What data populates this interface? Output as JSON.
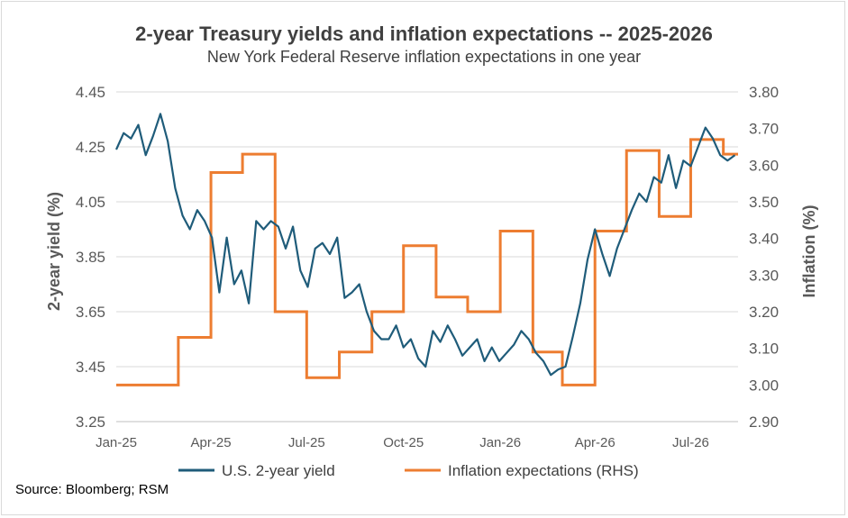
{
  "chart_data": {
    "type": "line",
    "title": "2-year Treasury yields and inflation expectations -- 2025-2026",
    "subtitle": "New York Federal Reserve inflation expectations in one year",
    "source": "Source: Bloomberg; RSM",
    "left_axis": {
      "label": "2-year yield (%)",
      "ylim": [
        3.25,
        4.45
      ],
      "ticks": [
        "4.45",
        "4.25",
        "4.05",
        "3.85",
        "3.65",
        "3.45",
        "3.25"
      ]
    },
    "right_axis": {
      "label": "Inflation (%)",
      "ylim": [
        2.9,
        3.8
      ],
      "ticks": [
        "3.80",
        "3.70",
        "3.60",
        "3.50",
        "3.40",
        "3.30",
        "3.20",
        "3.10",
        "3.00",
        "2.90"
      ]
    },
    "x_axis": {
      "ticks": [
        "Jan-25",
        "Apr-25",
        "Jul-25",
        "Oct-25",
        "Jan-26",
        "Apr-26",
        "Jul-26"
      ]
    },
    "legend_position": "bottom",
    "series": [
      {
        "name": "U.S. 2-year yield",
        "axis": "left",
        "color": "#1f5c7a",
        "points": [
          [
            "2025-01-01",
            4.24
          ],
          [
            "2025-01-08",
            4.3
          ],
          [
            "2025-01-15",
            4.28
          ],
          [
            "2025-01-22",
            4.33
          ],
          [
            "2025-01-29",
            4.22
          ],
          [
            "2025-02-05",
            4.29
          ],
          [
            "2025-02-12",
            4.37
          ],
          [
            "2025-02-19",
            4.27
          ],
          [
            "2025-02-26",
            4.1
          ],
          [
            "2025-03-05",
            4.0
          ],
          [
            "2025-03-12",
            3.95
          ],
          [
            "2025-03-19",
            4.02
          ],
          [
            "2025-03-26",
            3.98
          ],
          [
            "2025-04-02",
            3.92
          ],
          [
            "2025-04-09",
            3.72
          ],
          [
            "2025-04-16",
            3.92
          ],
          [
            "2025-04-23",
            3.75
          ],
          [
            "2025-04-30",
            3.8
          ],
          [
            "2025-05-07",
            3.68
          ],
          [
            "2025-05-14",
            3.98
          ],
          [
            "2025-05-21",
            3.95
          ],
          [
            "2025-05-28",
            3.98
          ],
          [
            "2025-06-04",
            3.96
          ],
          [
            "2025-06-11",
            3.88
          ],
          [
            "2025-06-18",
            3.96
          ],
          [
            "2025-06-25",
            3.8
          ],
          [
            "2025-07-02",
            3.74
          ],
          [
            "2025-07-09",
            3.88
          ],
          [
            "2025-07-16",
            3.9
          ],
          [
            "2025-07-23",
            3.86
          ],
          [
            "2025-07-30",
            3.92
          ],
          [
            "2025-08-06",
            3.7
          ],
          [
            "2025-08-13",
            3.72
          ],
          [
            "2025-08-20",
            3.75
          ],
          [
            "2025-08-27",
            3.65
          ],
          [
            "2025-09-03",
            3.58
          ],
          [
            "2025-09-10",
            3.55
          ],
          [
            "2025-09-17",
            3.55
          ],
          [
            "2025-09-24",
            3.6
          ],
          [
            "2025-10-01",
            3.52
          ],
          [
            "2025-10-08",
            3.55
          ],
          [
            "2025-10-15",
            3.48
          ],
          [
            "2025-10-22",
            3.45
          ],
          [
            "2025-10-29",
            3.58
          ],
          [
            "2025-11-05",
            3.54
          ],
          [
            "2025-11-12",
            3.6
          ],
          [
            "2025-11-19",
            3.55
          ],
          [
            "2025-11-26",
            3.49
          ],
          [
            "2025-12-03",
            3.52
          ],
          [
            "2025-12-10",
            3.55
          ],
          [
            "2025-12-17",
            3.47
          ],
          [
            "2025-12-24",
            3.52
          ],
          [
            "2025-12-31",
            3.47
          ],
          [
            "2026-01-07",
            3.5
          ],
          [
            "2026-01-14",
            3.53
          ],
          [
            "2026-01-21",
            3.58
          ],
          [
            "2026-01-28",
            3.55
          ],
          [
            "2026-02-04",
            3.5
          ],
          [
            "2026-02-11",
            3.47
          ],
          [
            "2026-02-18",
            3.42
          ],
          [
            "2026-02-25",
            3.44
          ],
          [
            "2026-03-04",
            3.45
          ],
          [
            "2026-03-11",
            3.56
          ],
          [
            "2026-03-18",
            3.68
          ],
          [
            "2026-03-25",
            3.84
          ],
          [
            "2026-04-01",
            3.95
          ],
          [
            "2026-04-08",
            3.86
          ],
          [
            "2026-04-15",
            3.78
          ],
          [
            "2026-04-22",
            3.88
          ],
          [
            "2026-04-29",
            3.95
          ],
          [
            "2026-05-06",
            4.02
          ],
          [
            "2026-05-13",
            4.08
          ],
          [
            "2026-05-20",
            4.05
          ],
          [
            "2026-05-27",
            4.14
          ],
          [
            "2026-06-03",
            4.12
          ],
          [
            "2026-06-10",
            4.22
          ],
          [
            "2026-06-17",
            4.1
          ],
          [
            "2026-06-24",
            4.2
          ],
          [
            "2026-07-01",
            4.18
          ],
          [
            "2026-07-08",
            4.25
          ],
          [
            "2026-07-15",
            4.32
          ],
          [
            "2026-07-22",
            4.28
          ],
          [
            "2026-07-29",
            4.22
          ],
          [
            "2026-08-05",
            4.2
          ],
          [
            "2026-08-12",
            4.22
          ]
        ]
      },
      {
        "name": "Inflation expectations (RHS)",
        "axis": "right",
        "color": "#ed7d31",
        "steps": [
          [
            "2025-01-01",
            3.0
          ],
          [
            "2025-03-01",
            3.13
          ],
          [
            "2025-04-01",
            3.58
          ],
          [
            "2025-05-01",
            3.63
          ],
          [
            "2025-06-01",
            3.2
          ],
          [
            "2025-07-01",
            3.02
          ],
          [
            "2025-08-01",
            3.09
          ],
          [
            "2025-09-01",
            3.2
          ],
          [
            "2025-10-01",
            3.38
          ],
          [
            "2025-11-01",
            3.24
          ],
          [
            "2025-12-01",
            3.2
          ],
          [
            "2026-01-01",
            3.42
          ],
          [
            "2026-02-01",
            3.09
          ],
          [
            "2026-03-01",
            3.0
          ],
          [
            "2026-04-01",
            3.42
          ],
          [
            "2026-05-01",
            3.64
          ],
          [
            "2026-06-01",
            3.46
          ],
          [
            "2026-07-01",
            3.67
          ],
          [
            "2026-08-01",
            3.63
          ],
          [
            "2026-08-15",
            3.63
          ]
        ]
      }
    ]
  }
}
